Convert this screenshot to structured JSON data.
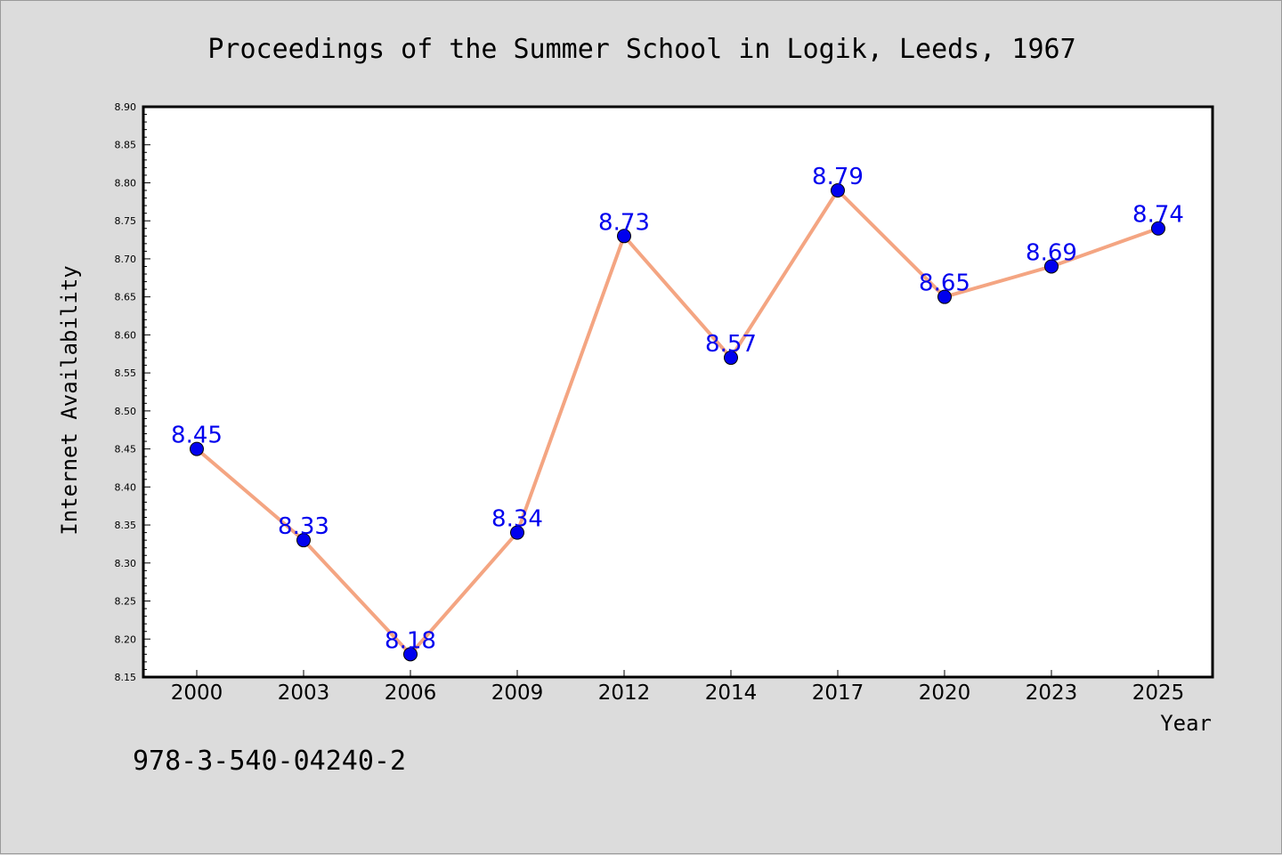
{
  "chart_data": {
    "type": "line",
    "title": "Proceedings of the Summer School in Logik, Leeds, 1967",
    "xlabel": "Year",
    "ylabel": "Internet Availability",
    "categories": [
      "2000",
      "2003",
      "2006",
      "2009",
      "2012",
      "2014",
      "2017",
      "2020",
      "2023",
      "2025"
    ],
    "series": [
      {
        "values": [
          8.45,
          8.33,
          8.18,
          8.34,
          8.73,
          8.57,
          8.79,
          8.65,
          8.69,
          8.74
        ],
        "data_labels": [
          "8.45",
          "8.33",
          "8.18",
          "8.34",
          "8.73",
          "8.57",
          "8.79",
          "8.65",
          "8.69",
          "8.74"
        ],
        "line_color": "#f4a582",
        "marker_color": "#0000ee"
      }
    ],
    "ylim": [
      8.15,
      8.9
    ],
    "yticks": [
      "8.15",
      "8.20",
      "8.25",
      "8.30",
      "8.35",
      "8.40",
      "8.45",
      "8.50",
      "8.55",
      "8.60",
      "8.65",
      "8.70",
      "8.75",
      "8.80",
      "8.85",
      "8.90"
    ],
    "grid": false,
    "legend": "none"
  },
  "footer_text": "978-3-540-04240-2",
  "colors": {
    "background": "#dcdcdc",
    "plot_background": "#ffffff",
    "line": "#f4a582",
    "marker": "#0000ee",
    "data_label": "#0000ee"
  }
}
